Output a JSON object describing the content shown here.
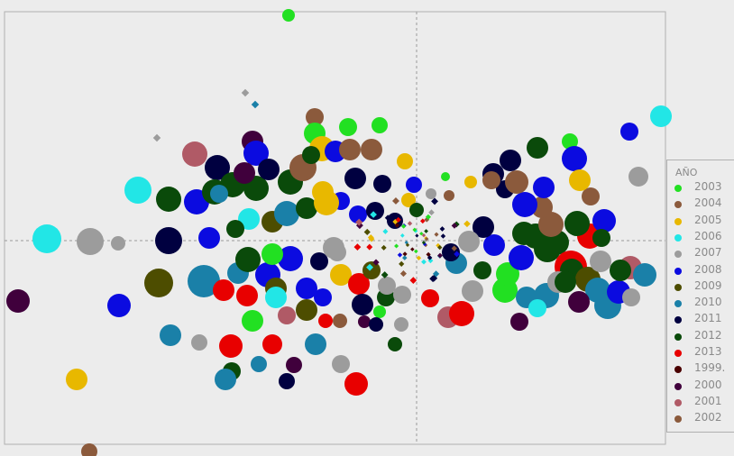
{
  "chart_data": {
    "type": "scatter",
    "title": "",
    "xlabel": "",
    "ylabel": "",
    "grid": false,
    "legend_placement": "right",
    "legend_title": "AÑO",
    "series": [
      {
        "name": "2003",
        "count": "41",
        "color": "#22e022"
      },
      {
        "name": "2004",
        "count": "47",
        "color": "#8b5a3c"
      },
      {
        "name": "2005",
        "count": "35",
        "color": "#e8b800"
      },
      {
        "name": "2006",
        "count": "24",
        "color": "#22e6e6"
      },
      {
        "name": "2007",
        "count": "47",
        "color": "#9c9c9c"
      },
      {
        "name": "2008",
        "count": "47",
        "color": "#0b0be0"
      },
      {
        "name": "2009",
        "count": "24",
        "color": "#4d4d00"
      },
      {
        "name": "2010",
        "count": "40",
        "color": "#1a80a8"
      },
      {
        "name": "2011",
        "count": "36",
        "color": "#000040"
      },
      {
        "name": "2012",
        "count": "45",
        "color": "#0a4a0a"
      },
      {
        "name": "2013",
        "count": "26",
        "color": "#e80000"
      },
      {
        "name": "1999.",
        "count": "7",
        "color": "#4a0000"
      },
      {
        "name": "2000",
        "count": "37",
        "color": "#40003c"
      },
      {
        "name": "2001",
        "count": "24",
        "color": "#b05a66"
      },
      {
        "name": "2002",
        "count": "4",
        "color": "#8b5a3c"
      }
    ]
  }
}
